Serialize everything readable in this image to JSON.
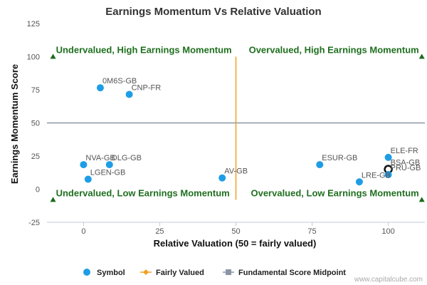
{
  "chart_data": {
    "type": "scatter",
    "title": "Earnings Momentum Vs Relative Valuation",
    "xlabel": "Relative Valuation (50 = fairly valued)",
    "ylabel": "Earnings Momentum Score",
    "xlim": [
      -12,
      112
    ],
    "ylim": [
      -25,
      125
    ],
    "xticks": [
      0,
      25,
      50,
      75,
      100
    ],
    "yticks": [
      -25,
      0,
      25,
      50,
      75,
      100,
      125
    ],
    "grid": false,
    "legend_position": "bottom",
    "series": [
      {
        "name": "Symbol",
        "color": "#1e9de6",
        "points": [
          {
            "label": "0M6S-GB",
            "x": 5.5,
            "y": 76.5
          },
          {
            "label": "CNP-FR",
            "x": 15,
            "y": 71.5
          },
          {
            "label": "NVA-GB",
            "x": 0,
            "y": 18.5
          },
          {
            "label": "DLG-GB",
            "x": 8.5,
            "y": 18.5
          },
          {
            "label": "LGEN-GB",
            "x": 1.5,
            "y": 7.5
          },
          {
            "label": "AV-GB",
            "x": 45.5,
            "y": 8.5
          },
          {
            "label": "ESUR-GB",
            "x": 77.5,
            "y": 18.5
          },
          {
            "label": "ELE-FR",
            "x": 100,
            "y": 24
          },
          {
            "label": "BSA-GB",
            "x": 100,
            "y": 15
          },
          {
            "label": "PRU-GB",
            "x": 100,
            "y": 11
          },
          {
            "label": "LRE-GB",
            "x": 90.5,
            "y": 5.5
          }
        ],
        "highlighted": "BSA-GB"
      },
      {
        "name": "Fairly Valued",
        "color": "#f0a020",
        "x": 50,
        "y_range": [
          -8,
          100
        ]
      },
      {
        "name": "Fundamental Score Midpoint",
        "color": "#8a96a6",
        "y": 50,
        "x_range": [
          -12,
          112
        ]
      }
    ],
    "quadrant_labels": [
      {
        "text": "Undervalued, High Earnings Momentum",
        "x": -10,
        "y": 100,
        "anchor": "start"
      },
      {
        "text": "Overvalued, High Earnings Momentum",
        "x": 111,
        "y": 100,
        "anchor": "end"
      },
      {
        "text": "Undervalued, Low Earnings Momentum",
        "x": -10,
        "y": -8,
        "anchor": "start"
      },
      {
        "text": "Overvalued, Low Earnings Momentum",
        "x": 111,
        "y": -8,
        "anchor": "end"
      }
    ],
    "quadrant_marker_color": "#1a6b1a"
  },
  "credit": "www.capitalcube.com"
}
